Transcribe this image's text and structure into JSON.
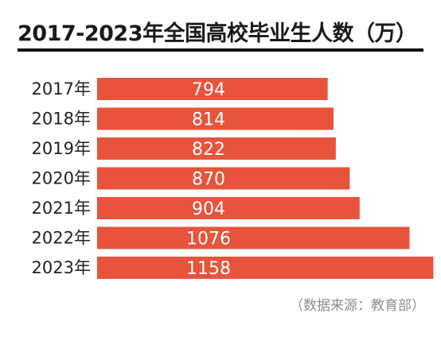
{
  "chart_data": {
    "type": "bar",
    "orientation": "horizontal",
    "title": "2017-2023年全国高校毕业生人数（万）",
    "categories": [
      "2017年",
      "2018年",
      "2019年",
      "2020年",
      "2021年",
      "2022年",
      "2023年"
    ],
    "values": [
      794,
      814,
      822,
      870,
      904,
      1076,
      1158
    ],
    "data_labels": [
      "794",
      "814",
      "822",
      "870",
      "904",
      "1076",
      "1158"
    ],
    "bar_color": "#e8533c",
    "grid": false,
    "legend": "none",
    "source": "（数据来源：教育部）"
  }
}
